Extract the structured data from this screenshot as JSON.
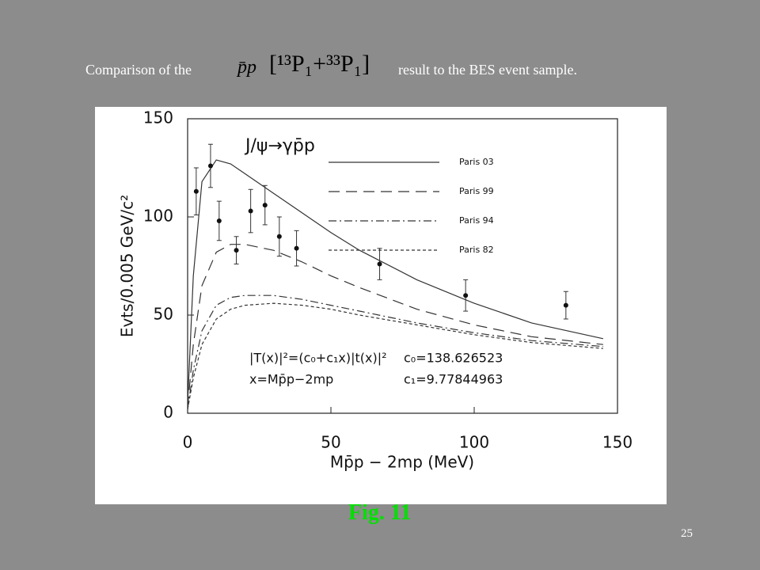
{
  "slide": {
    "title_before": "Comparison of the",
    "title_formula": "p̄p",
    "title_bracket": "[¹³P₁+³³P₁]",
    "title_after": "result to the BES event sample.",
    "caption": "Fig. 11",
    "page_number": "25"
  },
  "chart_data": {
    "type": "line",
    "annotation": "J/ψ→γp̄p",
    "formula_line1": "|T(x)|²=(c₀+c₁x)|t(x)|²",
    "formula_line2": "x=Mp̄p−2mp",
    "param_c0": "c₀=138.626523",
    "param_c1": "c₁=9.77844963",
    "x_label": "Mp̄p − 2mp (MeV)",
    "y_label": "Evts/0.005 GeV/c²",
    "x": [
      0,
      2,
      5,
      10,
      15,
      20,
      30,
      40,
      50,
      60,
      80,
      100,
      120,
      145
    ],
    "series": [
      {
        "name": "Paris 03",
        "color": "#333333",
        "dash": "none",
        "values": [
          5,
          70,
          118,
          129,
          127,
          122,
          112,
          102,
          92,
          83,
          68,
          56,
          46,
          38
        ]
      },
      {
        "name": "Paris 99",
        "color": "#333333",
        "dash": "14 8",
        "values": [
          3,
          35,
          65,
          82,
          86,
          86,
          83,
          77,
          70,
          64,
          53,
          45,
          39,
          35
        ]
      },
      {
        "name": "Paris 94",
        "color": "#333333",
        "dash": "10 4 2 4",
        "values": [
          2,
          22,
          42,
          55,
          59,
          60,
          60,
          58,
          55,
          52,
          46,
          41,
          37,
          34
        ]
      },
      {
        "name": "Paris 82",
        "color": "#333333",
        "dash": "4 3",
        "values": [
          2,
          18,
          35,
          48,
          53,
          55,
          56,
          55,
          53,
          50,
          45,
          40,
          36,
          33
        ]
      }
    ],
    "data_points": {
      "x": [
        3,
        8,
        11,
        17,
        22,
        27,
        32,
        38,
        67,
        97,
        132
      ],
      "values": [
        113,
        126,
        98,
        83,
        103,
        106,
        90,
        84,
        76,
        60,
        55
      ],
      "errors": [
        12,
        11,
        10,
        7,
        11,
        10,
        10,
        9,
        8,
        8,
        7
      ]
    },
    "xlim": [
      0,
      150
    ],
    "xticks": [
      0,
      50,
      100,
      150
    ],
    "ylim": [
      0,
      150
    ],
    "yticks": [
      0,
      50,
      100,
      150
    ]
  }
}
